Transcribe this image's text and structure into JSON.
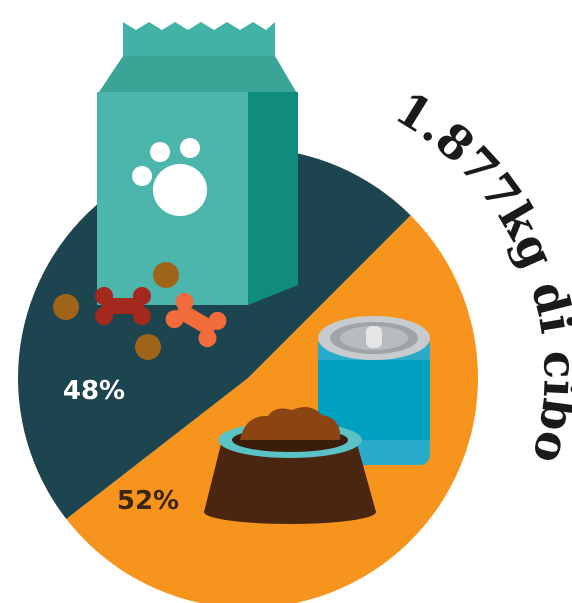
{
  "chart_data": {
    "type": "pie",
    "title": "1.877kg di cibo",
    "values": [
      52,
      48
    ],
    "value_labels": [
      "52%",
      "48%"
    ],
    "colors": [
      "#f7941d",
      "#1d4550"
    ]
  }
}
